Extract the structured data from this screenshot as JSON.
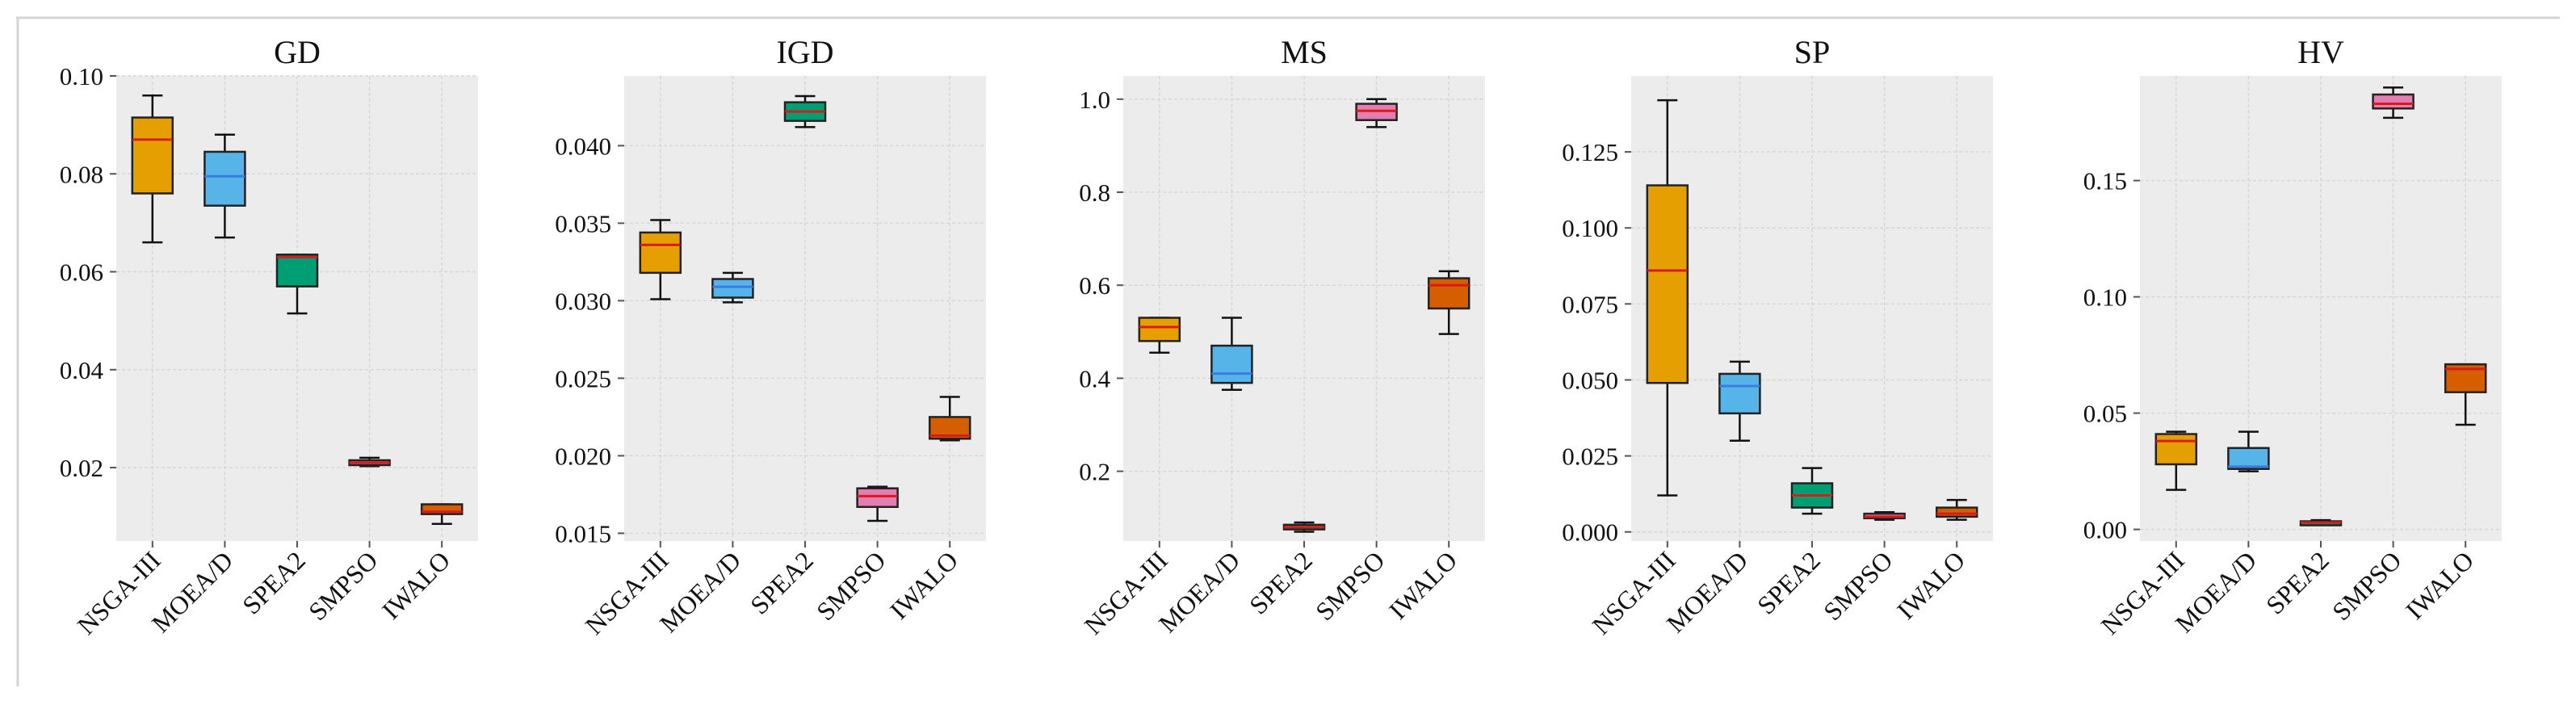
{
  "colors": {
    "panel_bg": "#ececec",
    "grid": "#d6d6d6",
    "whisker": "#111111",
    "series": {
      "NSGA-III": "#E69F00",
      "MOEA/D": "#56B4E9",
      "SPEA2": "#009E73",
      "SMPSO": "#E57EB0",
      "IWALO": "#D55E00"
    },
    "medians": {
      "NSGA-III": "#D81B1B",
      "MOEA/D": "#3C7BE0",
      "SPEA2": "#D81B1B",
      "SMPSO": "#D81B1B",
      "IWALO": "#D81B1B"
    }
  },
  "chart_data": [
    {
      "type": "box",
      "title": "GD",
      "categories": [
        "NSGA-III",
        "MOEA/D",
        "SPEA2",
        "SMPSO",
        "IWALO"
      ],
      "ylim": [
        0.005,
        0.1
      ],
      "yticks": [
        0.02,
        0.04,
        0.06,
        0.08,
        0.1
      ],
      "ytick_labels": [
        "0.02",
        "0.04",
        "0.06",
        "0.08",
        "0.10"
      ],
      "boxes": [
        {
          "min": 0.066,
          "q1": 0.076,
          "median": 0.087,
          "q3": 0.0915,
          "max": 0.096
        },
        {
          "min": 0.067,
          "q1": 0.0735,
          "median": 0.0795,
          "q3": 0.0845,
          "max": 0.088
        },
        {
          "min": 0.0515,
          "q1": 0.057,
          "median": 0.063,
          "q3": 0.0635,
          "max": 0.0635
        },
        {
          "min": 0.0203,
          "q1": 0.0205,
          "median": 0.021,
          "q3": 0.0215,
          "max": 0.022
        },
        {
          "min": 0.0085,
          "q1": 0.0105,
          "median": 0.011,
          "q3": 0.0125,
          "max": 0.0125
        }
      ]
    },
    {
      "type": "box",
      "title": "IGD",
      "categories": [
        "NSGA-III",
        "MOEA/D",
        "SPEA2",
        "SMPSO",
        "IWALO"
      ],
      "ylim": [
        0.0145,
        0.0445
      ],
      "yticks": [
        0.015,
        0.02,
        0.025,
        0.03,
        0.035,
        0.04
      ],
      "ytick_labels": [
        "0.015",
        "0.020",
        "0.025",
        "0.030",
        "0.035",
        "0.040"
      ],
      "boxes": [
        {
          "min": 0.0301,
          "q1": 0.0318,
          "median": 0.0336,
          "q3": 0.0344,
          "max": 0.0352
        },
        {
          "min": 0.0299,
          "q1": 0.0302,
          "median": 0.0309,
          "q3": 0.0314,
          "max": 0.0318
        },
        {
          "min": 0.0412,
          "q1": 0.0416,
          "median": 0.0422,
          "q3": 0.0428,
          "max": 0.0432
        },
        {
          "min": 0.0158,
          "q1": 0.0167,
          "median": 0.0174,
          "q3": 0.0179,
          "max": 0.018
        },
        {
          "min": 0.021,
          "q1": 0.0211,
          "median": 0.0213,
          "q3": 0.0225,
          "max": 0.0238
        }
      ]
    },
    {
      "type": "box",
      "title": "MS",
      "categories": [
        "NSGA-III",
        "MOEA/D",
        "SPEA2",
        "SMPSO",
        "IWALO"
      ],
      "ylim": [
        0.05,
        1.05
      ],
      "yticks": [
        0.2,
        0.4,
        0.6,
        0.8,
        1.0
      ],
      "ytick_labels": [
        "0.2",
        "0.4",
        "0.6",
        "0.8",
        "1.0"
      ],
      "boxes": [
        {
          "min": 0.455,
          "q1": 0.48,
          "median": 0.51,
          "q3": 0.53,
          "max": 0.53
        },
        {
          "min": 0.375,
          "q1": 0.39,
          "median": 0.41,
          "q3": 0.47,
          "max": 0.53
        },
        {
          "min": 0.07,
          "q1": 0.075,
          "median": 0.08,
          "q3": 0.085,
          "max": 0.09
        },
        {
          "min": 0.94,
          "q1": 0.955,
          "median": 0.975,
          "q3": 0.99,
          "max": 1.0
        },
        {
          "min": 0.495,
          "q1": 0.55,
          "median": 0.6,
          "q3": 0.615,
          "max": 0.63
        }
      ]
    },
    {
      "type": "box",
      "title": "SP",
      "categories": [
        "NSGA-III",
        "MOEA/D",
        "SPEA2",
        "SMPSO",
        "IWALO"
      ],
      "ylim": [
        -0.003,
        0.15
      ],
      "yticks": [
        0.0,
        0.025,
        0.05,
        0.075,
        0.1,
        0.125
      ],
      "ytick_labels": [
        "0.000",
        "0.025",
        "0.050",
        "0.075",
        "0.100",
        "0.125"
      ],
      "boxes": [
        {
          "min": 0.012,
          "q1": 0.049,
          "median": 0.086,
          "q3": 0.114,
          "max": 0.142
        },
        {
          "min": 0.03,
          "q1": 0.039,
          "median": 0.048,
          "q3": 0.052,
          "max": 0.056
        },
        {
          "min": 0.006,
          "q1": 0.008,
          "median": 0.012,
          "q3": 0.016,
          "max": 0.021
        },
        {
          "min": 0.004,
          "q1": 0.0045,
          "median": 0.005,
          "q3": 0.006,
          "max": 0.0065
        },
        {
          "min": 0.004,
          "q1": 0.005,
          "median": 0.006,
          "q3": 0.008,
          "max": 0.0105
        }
      ]
    },
    {
      "type": "box",
      "title": "HV",
      "categories": [
        "NSGA-III",
        "MOEA/D",
        "SPEA2",
        "SMPSO",
        "IWALO"
      ],
      "ylim": [
        -0.005,
        0.195
      ],
      "yticks": [
        0.0,
        0.05,
        0.1,
        0.15
      ],
      "ytick_labels": [
        "0.00",
        "0.05",
        "0.10",
        "0.15"
      ],
      "boxes": [
        {
          "min": 0.017,
          "q1": 0.028,
          "median": 0.038,
          "q3": 0.041,
          "max": 0.042
        },
        {
          "min": 0.025,
          "q1": 0.026,
          "median": 0.027,
          "q3": 0.035,
          "max": 0.042
        },
        {
          "min": 0.002,
          "q1": 0.0025,
          "median": 0.003,
          "q3": 0.0035,
          "max": 0.004
        },
        {
          "min": 0.177,
          "q1": 0.181,
          "median": 0.183,
          "q3": 0.187,
          "max": 0.19
        },
        {
          "min": 0.045,
          "q1": 0.059,
          "median": 0.069,
          "q3": 0.071,
          "max": 0.071
        }
      ]
    }
  ]
}
